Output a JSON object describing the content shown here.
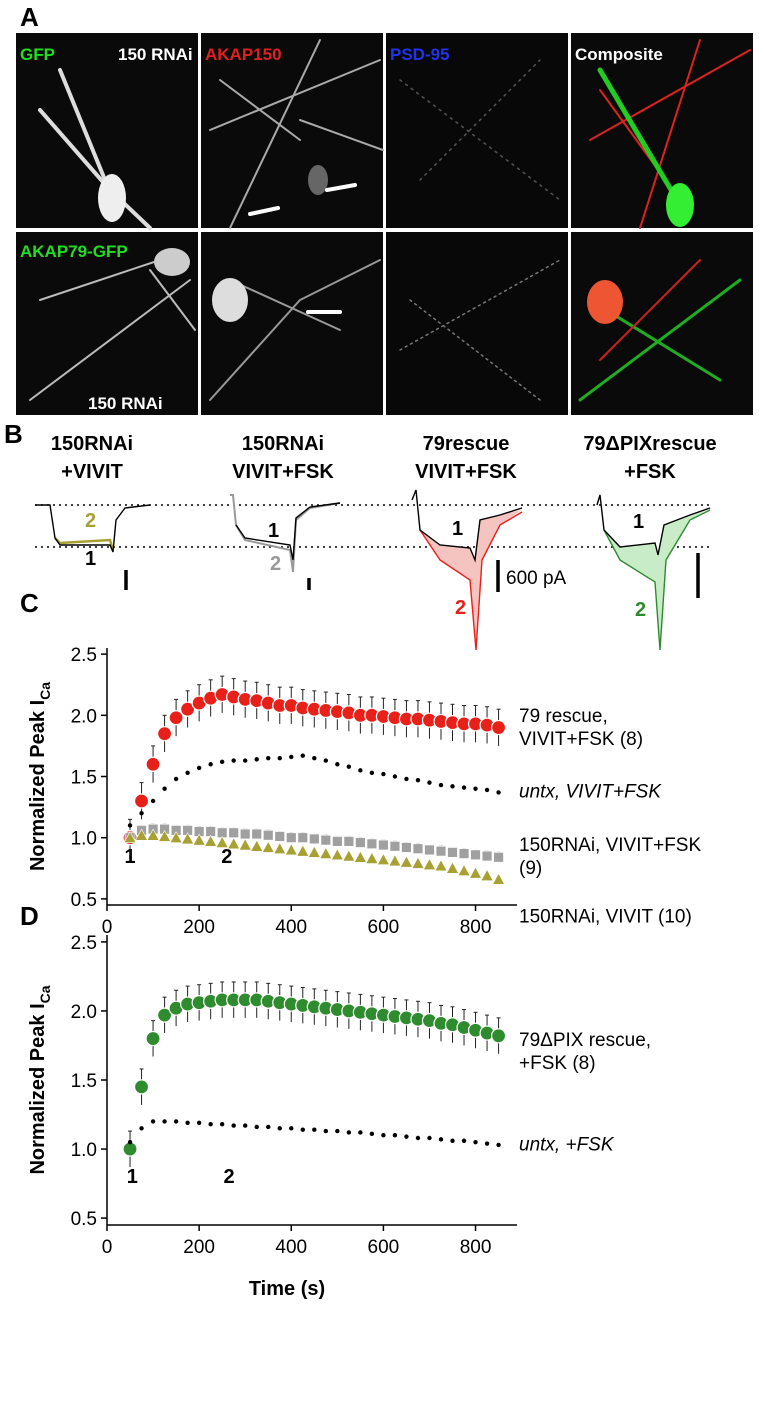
{
  "panel_a": {
    "label": "A",
    "gfp": "GFP",
    "rnai_top": "150 RNAi",
    "akap150": "AKAP150",
    "psd95": "PSD-95",
    "composite": "Composite",
    "akap79": "AKAP79-GFP",
    "rnai_bottom": "150 RNAi"
  },
  "panel_b": {
    "label": "B",
    "scale_label": "600 pA",
    "conditions": [
      {
        "title": [
          "150RNAi",
          "+VIVIT"
        ],
        "trace_labels": [
          "1",
          "2"
        ]
      },
      {
        "title": [
          "150RNAi",
          "VIVIT+FSK"
        ],
        "trace_labels": [
          "1",
          "2"
        ]
      },
      {
        "title": [
          "79rescue",
          "VIVIT+FSK"
        ],
        "trace_labels": [
          "1",
          "2"
        ]
      },
      {
        "title": [
          "79ΔPIXrescue",
          "+FSK"
        ],
        "trace_labels": [
          "1",
          "2"
        ]
      }
    ]
  },
  "chart_data": [
    {
      "type": "scatter",
      "panel": "C",
      "ylabel": "Normalized Peak I",
      "ylabel_sub": "Ca",
      "xlim": [
        0,
        890
      ],
      "xticks": [
        0,
        200,
        400,
        600,
        800
      ],
      "ylim": [
        0.45,
        2.55
      ],
      "yticks": [
        {
          "value": 0.5,
          "label": "0.5"
        },
        {
          "value": 1,
          "label": "1.0"
        },
        {
          "value": 1.5,
          "label": "1.5"
        },
        {
          "value": 2,
          "label": "2.0"
        },
        {
          "value": 2.5,
          "label": "2.5"
        }
      ],
      "annotations": [
        {
          "text": "1",
          "x": 50
        },
        {
          "text": "2",
          "x": 260
        }
      ],
      "x": [
        50,
        75,
        100,
        125,
        150,
        175,
        200,
        225,
        250,
        275,
        300,
        325,
        350,
        375,
        400,
        425,
        450,
        475,
        500,
        525,
        550,
        575,
        600,
        625,
        650,
        675,
        700,
        725,
        750,
        775,
        800,
        825,
        850
      ],
      "series": [
        {
          "name": "79 rescue, VIVIT+FSK (8)",
          "color": "#e8201a",
          "marker": "circle",
          "values": [
            1.0,
            1.3,
            1.6,
            1.85,
            1.98,
            2.05,
            2.1,
            2.14,
            2.17,
            2.15,
            2.13,
            2.12,
            2.1,
            2.08,
            2.08,
            2.06,
            2.05,
            2.04,
            2.03,
            2.02,
            2.0,
            2.0,
            1.99,
            1.98,
            1.97,
            1.97,
            1.96,
            1.95,
            1.94,
            1.93,
            1.93,
            1.92,
            1.9
          ],
          "errors": [
            0.15,
            0.15,
            0.15,
            0.15,
            0.15,
            0.15,
            0.15,
            0.15,
            0.15,
            0.15,
            0.15,
            0.15,
            0.15,
            0.15,
            0.15,
            0.15,
            0.15,
            0.15,
            0.15,
            0.15,
            0.15,
            0.15,
            0.15,
            0.15,
            0.15,
            0.15,
            0.15,
            0.15,
            0.15,
            0.15,
            0.15,
            0.15,
            0.15
          ]
        },
        {
          "name": "untx, VIVIT+FSK",
          "color": "#000000",
          "marker": "dot",
          "label_style": "italic",
          "values": [
            1.1,
            1.2,
            1.3,
            1.4,
            1.48,
            1.53,
            1.57,
            1.6,
            1.62,
            1.63,
            1.63,
            1.64,
            1.65,
            1.65,
            1.66,
            1.67,
            1.65,
            1.63,
            1.6,
            1.58,
            1.55,
            1.53,
            1.52,
            1.5,
            1.48,
            1.47,
            1.45,
            1.43,
            1.42,
            1.41,
            1.4,
            1.39,
            1.37
          ]
        },
        {
          "name": "150RNAi, VIVIT+FSK (9)",
          "color": "#a0a0a0",
          "marker": "square",
          "values": [
            1.0,
            1.06,
            1.07,
            1.07,
            1.06,
            1.06,
            1.05,
            1.05,
            1.04,
            1.04,
            1.03,
            1.03,
            1.02,
            1.01,
            1.0,
            1.0,
            0.99,
            0.98,
            0.97,
            0.97,
            0.96,
            0.95,
            0.94,
            0.93,
            0.92,
            0.91,
            0.9,
            0.89,
            0.88,
            0.87,
            0.86,
            0.85,
            0.84
          ],
          "errors": [
            0.04,
            0.04,
            0.04,
            0.04,
            0.04,
            0.04,
            0.04,
            0.04,
            0.04,
            0.04,
            0.04,
            0.04,
            0.04,
            0.04,
            0.04,
            0.04,
            0.04,
            0.04,
            0.04,
            0.04,
            0.04,
            0.04,
            0.04,
            0.04,
            0.04,
            0.04,
            0.04,
            0.04,
            0.04,
            0.04,
            0.04,
            0.04,
            0.04
          ]
        },
        {
          "name": "150RNAi, VIVIT (10)",
          "color": "#a8a032",
          "marker": "triangle",
          "values": [
            1.0,
            1.02,
            1.02,
            1.01,
            1.0,
            0.99,
            0.98,
            0.97,
            0.96,
            0.95,
            0.94,
            0.93,
            0.92,
            0.91,
            0.9,
            0.89,
            0.88,
            0.87,
            0.86,
            0.85,
            0.84,
            0.83,
            0.82,
            0.81,
            0.8,
            0.79,
            0.78,
            0.77,
            0.75,
            0.73,
            0.71,
            0.69,
            0.66
          ]
        }
      ]
    },
    {
      "type": "scatter",
      "panel": "D",
      "ylabel": "Normalized Peak I",
      "ylabel_sub": "Ca",
      "xlabel": "Time (s)",
      "xlim": [
        0,
        890
      ],
      "xticks": [
        0,
        200,
        400,
        600,
        800
      ],
      "ylim": [
        0.45,
        2.55
      ],
      "yticks": [
        {
          "value": 0.5,
          "label": "0.5"
        },
        {
          "value": 1,
          "label": "1.0"
        },
        {
          "value": 1.5,
          "label": "1.5"
        },
        {
          "value": 2,
          "label": "2.0"
        },
        {
          "value": 2.5,
          "label": "2.5"
        }
      ],
      "annotations": [
        {
          "text": "1",
          "x": 55
        },
        {
          "text": "2",
          "x": 265
        }
      ],
      "x": [
        50,
        75,
        100,
        125,
        150,
        175,
        200,
        225,
        250,
        275,
        300,
        325,
        350,
        375,
        400,
        425,
        450,
        475,
        500,
        525,
        550,
        575,
        600,
        625,
        650,
        675,
        700,
        725,
        750,
        775,
        800,
        825,
        850
      ],
      "series": [
        {
          "name": "79ΔPIX rescue, +FSK (8)",
          "color": "#2e8b2e",
          "marker": "circle",
          "values": [
            1.0,
            1.45,
            1.8,
            1.97,
            2.02,
            2.05,
            2.06,
            2.07,
            2.08,
            2.08,
            2.08,
            2.08,
            2.07,
            2.06,
            2.05,
            2.04,
            2.03,
            2.02,
            2.01,
            2.0,
            1.99,
            1.98,
            1.97,
            1.96,
            1.95,
            1.94,
            1.93,
            1.91,
            1.9,
            1.88,
            1.86,
            1.84,
            1.82
          ],
          "errors": [
            0.13,
            0.13,
            0.13,
            0.13,
            0.13,
            0.13,
            0.13,
            0.13,
            0.13,
            0.13,
            0.13,
            0.13,
            0.13,
            0.13,
            0.13,
            0.13,
            0.13,
            0.13,
            0.13,
            0.13,
            0.13,
            0.13,
            0.13,
            0.13,
            0.13,
            0.13,
            0.13,
            0.13,
            0.13,
            0.13,
            0.13,
            0.13,
            0.13
          ]
        },
        {
          "name": "untx, +FSK",
          "color": "#000000",
          "marker": "dot",
          "label_style": "italic",
          "values": [
            1.05,
            1.15,
            1.2,
            1.2,
            1.2,
            1.19,
            1.19,
            1.18,
            1.18,
            1.17,
            1.17,
            1.16,
            1.16,
            1.15,
            1.15,
            1.14,
            1.14,
            1.13,
            1.13,
            1.12,
            1.12,
            1.11,
            1.1,
            1.1,
            1.09,
            1.08,
            1.08,
            1.07,
            1.06,
            1.06,
            1.05,
            1.04,
            1.03
          ]
        }
      ]
    }
  ]
}
